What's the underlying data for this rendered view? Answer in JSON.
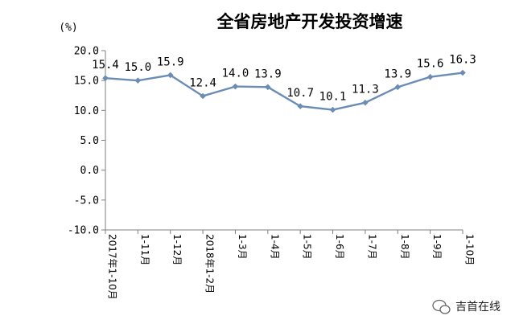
{
  "chart_data": {
    "type": "line",
    "title": "全省房地产开发投资增速",
    "ylabel": "(%)",
    "xlabel": "",
    "categories": [
      "2017年1-10月",
      "1-11月",
      "1-12月",
      "2018年1-2月",
      "1-3月",
      "1-4月",
      "1-5月",
      "1-6月",
      "1-7月",
      "1-8月",
      "1-9月",
      "1-10月"
    ],
    "series": [
      {
        "values": [
          15.4,
          15.0,
          15.9,
          12.4,
          14.0,
          13.9,
          10.7,
          10.1,
          11.3,
          13.9,
          15.6,
          16.3
        ]
      }
    ],
    "data_labels": [
      "15.4",
      "15.0",
      "15.9",
      "12.4",
      "14.0",
      "13.9",
      "10.7",
      "10.1",
      "11.3",
      "13.9",
      "15.6",
      "16.3"
    ],
    "yticks": [
      20,
      15,
      10,
      5,
      0,
      -5,
      -10
    ],
    "ytick_labels": [
      "20.0",
      "15.0",
      "10.0",
      "5.0",
      "0.0",
      "-5.0",
      "-10.0"
    ],
    "ylim": [
      -10,
      20
    ],
    "grid": false,
    "legend": "none",
    "colors": {
      "line": "#6b8db5",
      "marker": "#6b8db5",
      "axis": "#7f7f7f"
    }
  },
  "watermark": {
    "text": "吉首在线",
    "icon": "wechat-icon"
  }
}
